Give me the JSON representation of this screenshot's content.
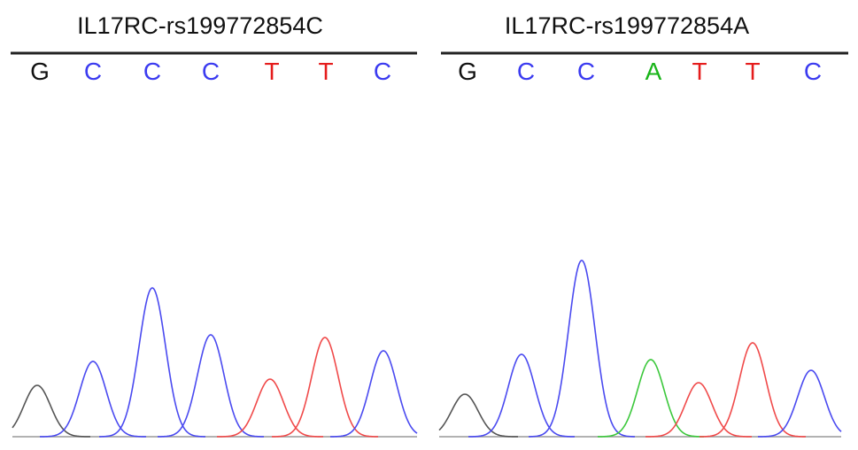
{
  "panels": [
    {
      "title": "IL17RC-rs199772854C",
      "bases": [
        "G",
        "C",
        "C",
        "C",
        "T",
        "T",
        "C"
      ]
    },
    {
      "title": "IL17RC-rs199772854A",
      "bases": [
        "G",
        "C",
        "C",
        "A",
        "T",
        "T",
        "C"
      ]
    }
  ]
}
